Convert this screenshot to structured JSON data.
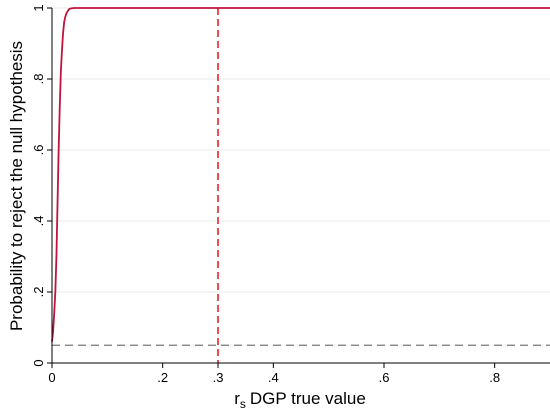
{
  "chart_data": {
    "type": "line",
    "title": "",
    "xlabel": "DGP true value",
    "xlabel_symbol": "r",
    "xlabel_subscript": "s",
    "ylabel": "Probability to reject the null hypothesis",
    "xlim": [
      0,
      0.9
    ],
    "ylim": [
      0,
      1
    ],
    "x_ticks": [
      {
        "value": 0,
        "label": "0"
      },
      {
        "value": 0.2,
        "label": ".2"
      },
      {
        "value": 0.3,
        "label": ".3"
      },
      {
        "value": 0.4,
        "label": ".4"
      },
      {
        "value": 0.6,
        "label": ".6"
      },
      {
        "value": 0.8,
        "label": ".8"
      }
    ],
    "y_ticks": [
      {
        "value": 0,
        "label": "0"
      },
      {
        "value": 0.2,
        "label": ".2"
      },
      {
        "value": 0.4,
        "label": ".4"
      },
      {
        "value": 0.6,
        "label": ".6"
      },
      {
        "value": 0.8,
        "label": ".8"
      },
      {
        "value": 1,
        "label": "1"
      }
    ],
    "grid": true,
    "series": [
      {
        "color": "#c0143c",
        "x": [
          0,
          0.002,
          0.004,
          0.006,
          0.008,
          0.01,
          0.012,
          0.014,
          0.016,
          0.018,
          0.02,
          0.022,
          0.024,
          0.026,
          0.028,
          0.03,
          0.032,
          0.035,
          0.04,
          0.05,
          0.1,
          0.2,
          0.3,
          0.4,
          0.5,
          0.6,
          0.7,
          0.8,
          0.9
        ],
        "y": [
          0.06,
          0.09,
          0.14,
          0.2,
          0.3,
          0.45,
          0.6,
          0.72,
          0.82,
          0.88,
          0.93,
          0.96,
          0.975,
          0.985,
          0.99,
          0.995,
          0.998,
          0.999,
          1,
          1,
          1,
          1,
          1,
          1,
          1,
          1,
          1,
          1,
          1
        ]
      }
    ],
    "reference_lines": [
      {
        "orientation": "vertical",
        "value": 0.3,
        "color": "#e8232a",
        "style": "dashed"
      },
      {
        "orientation": "horizontal",
        "value": 0.05,
        "color": "#777777",
        "style": "dashed"
      }
    ]
  }
}
